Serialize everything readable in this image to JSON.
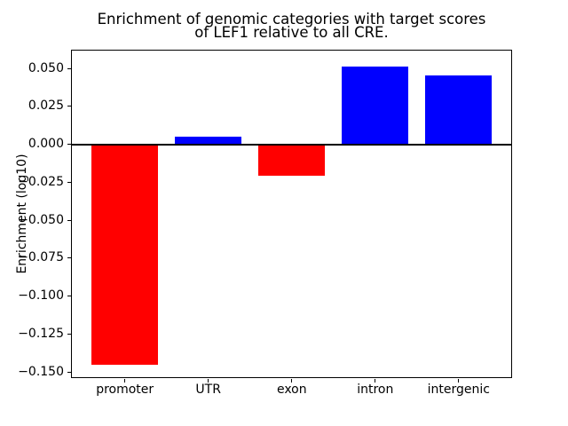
{
  "figure": {
    "title_line1": "Enrichment of genomic categories with target scores",
    "title_line2": "of LEF1 relative to all CRE.",
    "ylabel": "Enrichment (log10)",
    "background_color": "#ffffff",
    "spine_color": "#000000"
  },
  "chart_data": {
    "type": "bar",
    "title": "Enrichment of genomic categories with target scores\nof LEF1 relative to all CRE.",
    "xlabel": "",
    "ylabel": "Enrichment (log10)",
    "categories": [
      "promoter",
      "UTR",
      "exon",
      "intron",
      "intergenic"
    ],
    "values": [
      -0.1455,
      0.005,
      -0.0209,
      0.0512,
      0.0453
    ],
    "bar_colors": [
      "#ff0000",
      "#0000ff",
      "#ff0000",
      "#0000ff",
      "#0000ff"
    ],
    "positive_color": "#0000ff",
    "negative_color": "#ff0000",
    "ylim": [
      -0.1537,
      0.062
    ],
    "yticks": [
      0.05,
      0.025,
      0.0,
      -0.025,
      -0.05,
      -0.075,
      -0.1,
      -0.125,
      -0.15
    ],
    "ytick_labels": [
      "0.050",
      "0.025",
      "0.000",
      "−0.025",
      "−0.050",
      "−0.075",
      "−0.100",
      "−0.125",
      "−0.150"
    ],
    "grid": false,
    "legend": null,
    "zero_line": true,
    "bar_width_fraction": 0.8
  }
}
